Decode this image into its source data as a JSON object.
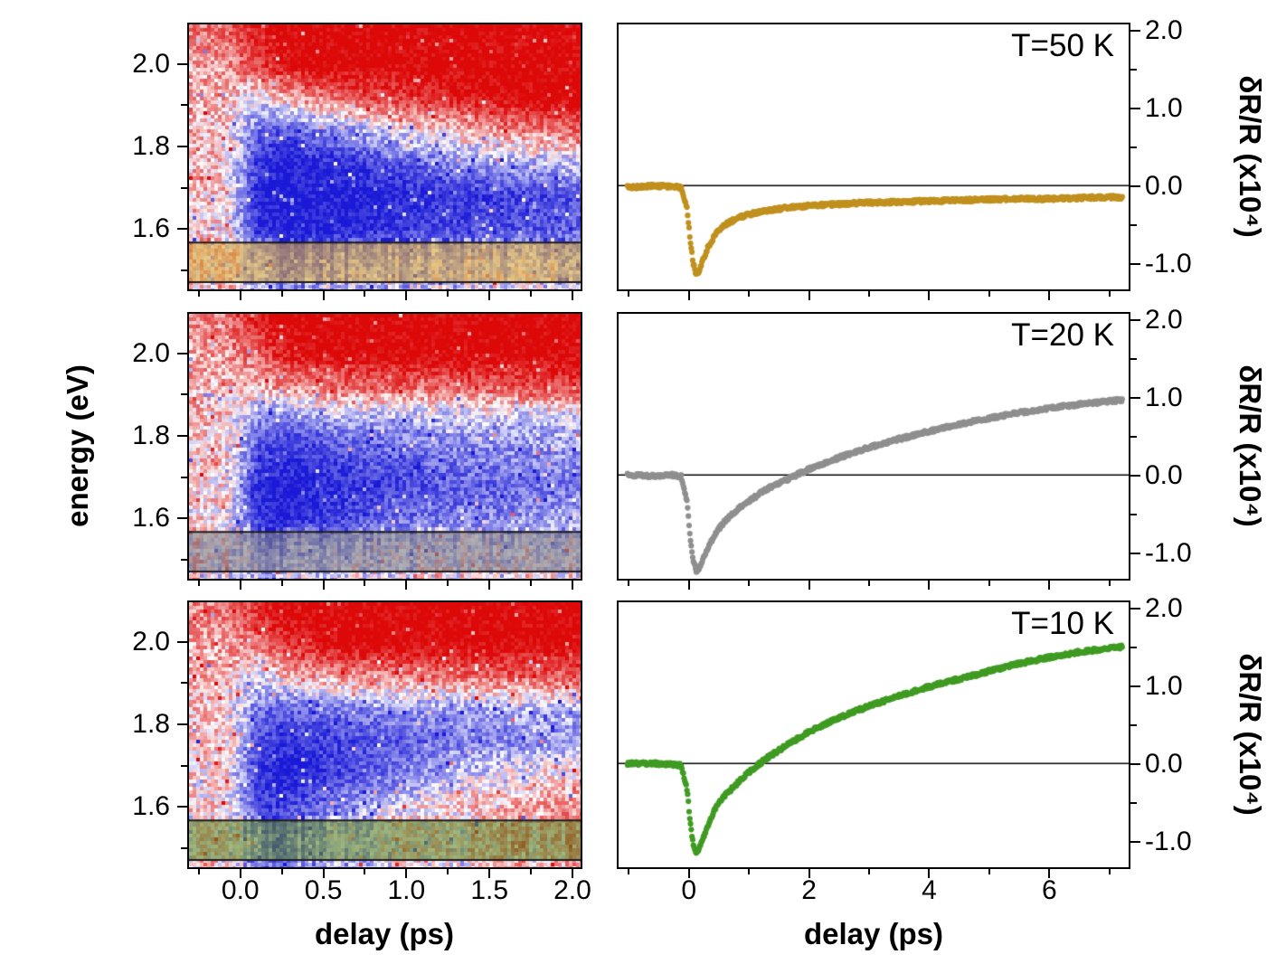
{
  "figure": {
    "background": "#ffffff",
    "energy_ylabel": "energy (eV)",
    "left_xlabel": "delay (ps)",
    "right_xlabel": "delay (ps)",
    "right_ylabel": "δR/R (x10⁴)"
  },
  "chart_data": [
    {
      "id": "heatmap-T50K",
      "type": "heatmap",
      "temperature": "T=50 K",
      "xlabel": "delay (ps)",
      "ylabel": "energy (eV)",
      "x_range": [
        -0.32,
        2.06
      ],
      "y_range": [
        1.45,
        2.1
      ],
      "x_ticks": [
        0.0,
        0.5,
        1.0,
        1.5,
        2.0
      ],
      "x_tick_labels": [
        "0.0",
        "0.5",
        "1.0",
        "1.5",
        "2.0"
      ],
      "x_minor_ticks": [
        -0.25,
        0.25,
        0.75,
        1.25,
        1.75
      ],
      "y_ticks": [
        1.6,
        1.8,
        2.0
      ],
      "y_tick_labels": [
        "1.6",
        "1.8",
        "2.0"
      ],
      "y_minor_ticks": [
        1.5,
        1.7,
        1.9,
        2.1
      ],
      "show_x_tick_labels": false,
      "colormap": {
        "positive": "#dd0808",
        "negative": "#1919d7",
        "zero": "#ffffff"
      },
      "highlight_band": {
        "y_from": 1.468,
        "y_to": 1.565,
        "color": "rgba(213,166,58,0.6)",
        "edge_color": "#1a1a1a"
      },
      "grid": {
        "x": [
          -0.3,
          -0.1,
          0.1,
          0.25,
          0.4,
          0.6,
          0.8,
          1.0,
          1.2,
          1.5,
          1.8,
          2.05
        ],
        "y": [
          2.08,
          2.0,
          1.92,
          1.84,
          1.76,
          1.68,
          1.6,
          1.52,
          1.45
        ],
        "values": [
          [
            0.45,
            0.5,
            0.9,
            1,
            1,
            1,
            1,
            1,
            1,
            1,
            1,
            1
          ],
          [
            0.3,
            0.35,
            0.7,
            0.9,
            1,
            1,
            1,
            1,
            1,
            1,
            1,
            1
          ],
          [
            0.25,
            0.2,
            -0.1,
            0.2,
            0.4,
            0.55,
            0.65,
            0.75,
            0.85,
            0.95,
            1,
            1
          ],
          [
            0.2,
            0.15,
            -0.6,
            -0.75,
            -0.6,
            -0.45,
            -0.25,
            -0.05,
            0.1,
            0.3,
            0.45,
            0.55
          ],
          [
            0.2,
            0.1,
            -0.85,
            -1,
            -0.95,
            -0.9,
            -0.8,
            -0.7,
            -0.55,
            -0.4,
            -0.3,
            -0.2
          ],
          [
            0.15,
            0.1,
            -0.95,
            -1,
            -1,
            -1,
            -1,
            -0.95,
            -0.9,
            -0.85,
            -0.8,
            -0.75
          ],
          [
            0.15,
            0.05,
            -0.9,
            -1,
            -1,
            -0.95,
            -0.9,
            -0.85,
            -0.8,
            -0.75,
            -0.7,
            -0.65
          ],
          [
            0.1,
            0.05,
            -0.5,
            -0.6,
            -0.55,
            -0.5,
            -0.45,
            -0.4,
            -0.35,
            -0.3,
            -0.3,
            -0.25
          ],
          [
            0.1,
            0.05,
            -0.35,
            -0.4,
            -0.35,
            -0.3,
            -0.25,
            -0.2,
            -0.2,
            -0.15,
            -0.1,
            -0.1
          ]
        ]
      }
    },
    {
      "id": "heatmap-T20K",
      "type": "heatmap",
      "temperature": "T=20 K",
      "xlabel": "delay (ps)",
      "ylabel": "energy (eV)",
      "x_range": [
        -0.32,
        2.06
      ],
      "y_range": [
        1.45,
        2.1
      ],
      "x_ticks": [
        0.0,
        0.5,
        1.0,
        1.5,
        2.0
      ],
      "x_tick_labels": [
        "0.0",
        "0.5",
        "1.0",
        "1.5",
        "2.0"
      ],
      "x_minor_ticks": [
        -0.25,
        0.25,
        0.75,
        1.25,
        1.75
      ],
      "y_ticks": [
        1.6,
        1.8,
        2.0
      ],
      "y_tick_labels": [
        "1.6",
        "1.8",
        "2.0"
      ],
      "y_minor_ticks": [
        1.5,
        1.7,
        1.9,
        2.1
      ],
      "show_x_tick_labels": false,
      "colormap": {
        "positive": "#dd0808",
        "negative": "#1919d7",
        "zero": "#ffffff"
      },
      "highlight_band": {
        "y_from": 1.468,
        "y_to": 1.565,
        "color": "rgba(125,125,130,0.6)",
        "edge_color": "#1a1a1a"
      },
      "grid": {
        "x": [
          -0.3,
          -0.1,
          0.1,
          0.25,
          0.4,
          0.6,
          0.8,
          1.0,
          1.2,
          1.5,
          1.8,
          2.05
        ],
        "y": [
          2.08,
          2.0,
          1.92,
          1.84,
          1.76,
          1.68,
          1.6,
          1.52,
          1.45
        ],
        "values": [
          [
            0.4,
            0.45,
            0.85,
            1,
            1,
            1,
            1,
            1,
            1,
            1,
            1,
            1
          ],
          [
            0.3,
            0.3,
            0.6,
            0.8,
            0.95,
            1,
            1,
            1,
            1,
            1,
            1,
            1
          ],
          [
            0.2,
            0.2,
            0.15,
            0.35,
            0.45,
            0.5,
            0.55,
            0.55,
            0.5,
            0.6,
            0.65,
            0.7
          ],
          [
            0.2,
            0.1,
            -0.45,
            -0.6,
            -0.5,
            -0.4,
            -0.35,
            -0.4,
            -0.3,
            -0.25,
            -0.3,
            -0.2
          ],
          [
            0.15,
            0.1,
            -0.75,
            -0.9,
            -0.85,
            -0.75,
            -0.65,
            -0.6,
            -0.55,
            -0.5,
            -0.45,
            -0.4
          ],
          [
            0.1,
            0.05,
            -0.95,
            -1,
            -1,
            -0.9,
            -0.85,
            -0.8,
            -0.7,
            -0.65,
            -0.6,
            -0.55
          ],
          [
            0.1,
            0.05,
            -0.85,
            -1,
            -0.9,
            -0.8,
            -0.7,
            -0.6,
            -0.55,
            -0.5,
            -0.4,
            -0.35
          ],
          [
            0.05,
            0,
            -0.45,
            -0.55,
            -0.35,
            -0.25,
            -0.3,
            -0.15,
            -0.2,
            -0.05,
            -0.1,
            0
          ],
          [
            0.1,
            0,
            -0.3,
            -0.25,
            -0.2,
            -0.1,
            -0.05,
            -0.1,
            0.05,
            0,
            0.1,
            0.1
          ]
        ]
      }
    },
    {
      "id": "heatmap-T10K",
      "type": "heatmap",
      "temperature": "T=10 K",
      "xlabel": "delay (ps)",
      "ylabel": "energy (eV)",
      "x_range": [
        -0.32,
        2.06
      ],
      "y_range": [
        1.45,
        2.1
      ],
      "x_ticks": [
        0.0,
        0.5,
        1.0,
        1.5,
        2.0
      ],
      "x_tick_labels": [
        "0.0",
        "0.5",
        "1.0",
        "1.5",
        "2.0"
      ],
      "x_minor_ticks": [
        -0.25,
        0.25,
        0.75,
        1.25,
        1.75
      ],
      "y_ticks": [
        1.6,
        1.8,
        2.0
      ],
      "y_tick_labels": [
        "1.6",
        "1.8",
        "2.0"
      ],
      "y_minor_ticks": [
        1.5,
        1.7,
        1.9,
        2.1
      ],
      "show_x_tick_labels": true,
      "colormap": {
        "positive": "#dd0808",
        "negative": "#1919d7",
        "zero": "#ffffff"
      },
      "highlight_band": {
        "y_from": 1.468,
        "y_to": 1.565,
        "color": "rgba(96,138,42,0.6)",
        "edge_color": "#1a1a1a"
      },
      "grid": {
        "x": [
          -0.3,
          -0.1,
          0.1,
          0.25,
          0.4,
          0.6,
          0.8,
          1.0,
          1.2,
          1.5,
          1.8,
          2.05
        ],
        "y": [
          2.08,
          2.0,
          1.92,
          1.84,
          1.76,
          1.68,
          1.6,
          1.52,
          1.45
        ],
        "values": [
          [
            0.4,
            0.45,
            0.8,
            1,
            1,
            1,
            1,
            1,
            1,
            1,
            1,
            1
          ],
          [
            0.3,
            0.3,
            0.5,
            0.75,
            0.9,
            1,
            1,
            1,
            1,
            1,
            1,
            1
          ],
          [
            0.2,
            0.2,
            -0.15,
            0.15,
            0.3,
            0.35,
            0.4,
            0.45,
            0.5,
            0.55,
            0.6,
            0.65
          ],
          [
            0.2,
            0.1,
            -0.55,
            -0.7,
            -0.6,
            -0.55,
            -0.5,
            -0.45,
            -0.4,
            -0.35,
            -0.3,
            -0.3
          ],
          [
            0.15,
            0.1,
            -0.75,
            -0.9,
            -0.85,
            -0.8,
            -0.75,
            -0.7,
            -0.6,
            -0.5,
            -0.45,
            -0.4
          ],
          [
            0.1,
            0.05,
            -0.85,
            -1,
            -0.9,
            -0.8,
            -0.7,
            -0.5,
            -0.35,
            -0.15,
            0,
            0.1
          ],
          [
            0.1,
            0.05,
            -0.8,
            -0.85,
            -0.7,
            -0.5,
            -0.3,
            -0.1,
            0.1,
            0.2,
            0.3,
            0.4
          ],
          [
            0.05,
            0,
            -0.45,
            -0.5,
            -0.4,
            -0.25,
            -0.1,
            0,
            0.1,
            0.2,
            0.25,
            0.3
          ],
          [
            0.1,
            0,
            -0.5,
            -0.55,
            -0.45,
            -0.3,
            -0.2,
            -0.1,
            0,
            0.1,
            0.15,
            0.2
          ]
        ]
      }
    },
    {
      "id": "line-T50K",
      "type": "line",
      "temperature_label": "T=50 K",
      "color": "#c0901e",
      "xlabel": "delay (ps)",
      "ylabel": "δR/R (x10⁴)",
      "x_range": [
        -1.2,
        7.35
      ],
      "y_range": [
        -1.35,
        2.1
      ],
      "x_ticks": [
        0,
        2,
        4,
        6
      ],
      "x_tick_labels": [
        "0",
        "2",
        "4",
        "6"
      ],
      "x_minor_ticks": [
        -1,
        1,
        3,
        5,
        7
      ],
      "y_ticks": [
        -1.0,
        0.0,
        1.0,
        2.0
      ],
      "y_tick_labels": [
        "-1.0",
        "0.0",
        "1.0",
        "2.0"
      ],
      "y_minor_ticks": [
        -0.5,
        0.5,
        1.5
      ],
      "zero_line": true,
      "show_x_tick_labels": false,
      "points": {
        "x": [
          -1.05,
          -0.6,
          -0.3,
          -0.15,
          -0.05,
          0,
          0.05,
          0.1,
          0.15,
          0.2,
          0.3,
          0.4,
          0.5,
          0.6,
          0.8,
          1.0,
          1.25,
          1.5,
          2.0,
          2.5,
          3.0,
          3.5,
          4.0,
          4.5,
          5.0,
          5.5,
          6.0,
          6.5,
          7.0,
          7.25
        ],
        "y": [
          -0.02,
          0,
          -0.01,
          -0.02,
          -0.3,
          -0.7,
          -1.0,
          -1.15,
          -1.12,
          -1.0,
          -0.8,
          -0.66,
          -0.56,
          -0.5,
          -0.42,
          -0.37,
          -0.33,
          -0.3,
          -0.26,
          -0.24,
          -0.22,
          -0.21,
          -0.2,
          -0.19,
          -0.18,
          -0.17,
          -0.17,
          -0.16,
          -0.15,
          -0.15
        ]
      }
    },
    {
      "id": "line-T20K",
      "type": "line",
      "temperature_label": "T=20 K",
      "color": "#8f8f8f",
      "xlabel": "delay (ps)",
      "ylabel": "δR/R (x10⁴)",
      "x_range": [
        -1.2,
        7.35
      ],
      "y_range": [
        -1.35,
        2.1
      ],
      "x_ticks": [
        0,
        2,
        4,
        6
      ],
      "x_tick_labels": [
        "0",
        "2",
        "4",
        "6"
      ],
      "x_minor_ticks": [
        -1,
        1,
        3,
        5,
        7
      ],
      "y_ticks": [
        -1.0,
        0.0,
        1.0,
        2.0
      ],
      "y_tick_labels": [
        "-1.0",
        "0.0",
        "1.0",
        "2.0"
      ],
      "y_minor_ticks": [
        -0.5,
        0.5,
        1.5
      ],
      "zero_line": true,
      "show_x_tick_labels": false,
      "points": {
        "x": [
          -1.05,
          -0.6,
          -0.3,
          -0.15,
          -0.05,
          0,
          0.05,
          0.1,
          0.15,
          0.2,
          0.3,
          0.4,
          0.5,
          0.6,
          0.8,
          1.0,
          1.25,
          1.5,
          2.0,
          2.5,
          3.0,
          3.5,
          4.0,
          4.5,
          5.0,
          5.5,
          6.0,
          6.5,
          7.0,
          7.25
        ],
        "y": [
          0,
          -0.01,
          0,
          -0.02,
          -0.35,
          -0.8,
          -1.1,
          -1.25,
          -1.22,
          -1.12,
          -0.95,
          -0.8,
          -0.68,
          -0.58,
          -0.44,
          -0.33,
          -0.2,
          -0.1,
          0.08,
          0.23,
          0.36,
          0.47,
          0.57,
          0.66,
          0.74,
          0.81,
          0.87,
          0.92,
          0.96,
          0.98
        ]
      }
    },
    {
      "id": "line-T10K",
      "type": "line",
      "temperature_label": "T=10 K",
      "color": "#3f9b22",
      "xlabel": "delay (ps)",
      "ylabel": "δR/R (x10⁴)",
      "x_range": [
        -1.2,
        7.35
      ],
      "y_range": [
        -1.35,
        2.1
      ],
      "x_ticks": [
        0,
        2,
        4,
        6
      ],
      "x_tick_labels": [
        "0",
        "2",
        "4",
        "6"
      ],
      "x_minor_ticks": [
        -1,
        1,
        3,
        5,
        7
      ],
      "y_ticks": [
        -1.0,
        0.0,
        1.0,
        2.0
      ],
      "y_tick_labels": [
        "-1.0",
        "0.0",
        "1.0",
        "2.0"
      ],
      "y_minor_ticks": [
        -0.5,
        0.5,
        1.5
      ],
      "zero_line": true,
      "show_x_tick_labels": true,
      "points": {
        "x": [
          -1.05,
          -0.6,
          -0.3,
          -0.15,
          -0.05,
          0,
          0.05,
          0.1,
          0.15,
          0.2,
          0.3,
          0.4,
          0.5,
          0.6,
          0.8,
          1.0,
          1.25,
          1.5,
          2.0,
          2.5,
          3.0,
          3.5,
          4.0,
          4.5,
          5.0,
          5.5,
          6.0,
          6.5,
          7.0,
          7.25
        ],
        "y": [
          0,
          0,
          -0.01,
          -0.02,
          -0.35,
          -0.75,
          -1.05,
          -1.17,
          -1.1,
          -1.0,
          -0.8,
          -0.62,
          -0.5,
          -0.4,
          -0.25,
          -0.1,
          0.05,
          0.18,
          0.42,
          0.6,
          0.75,
          0.88,
          1.0,
          1.1,
          1.2,
          1.3,
          1.38,
          1.45,
          1.5,
          1.52
        ]
      }
    }
  ]
}
